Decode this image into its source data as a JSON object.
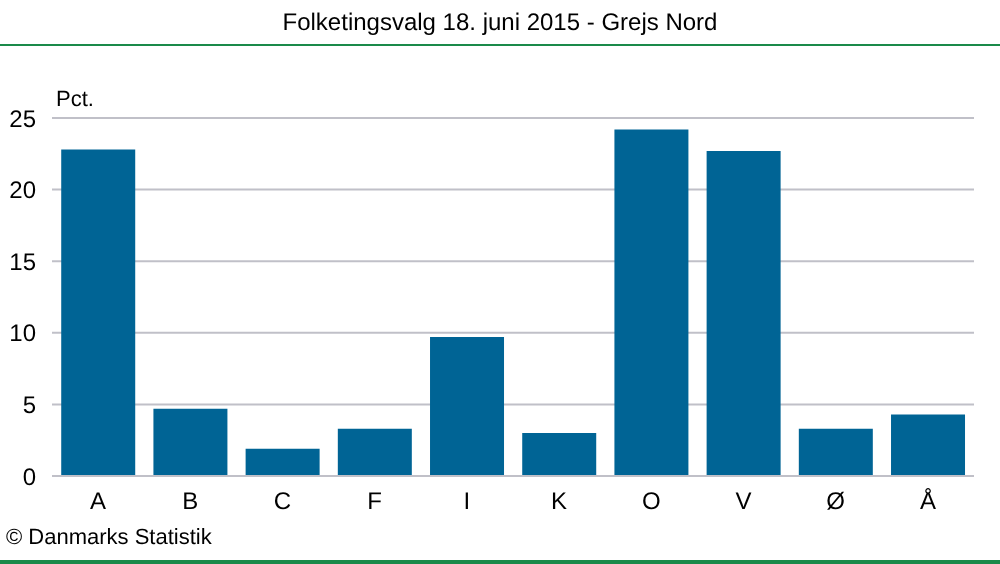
{
  "chart_data": {
    "type": "bar",
    "title": "Folketingsvalg 18. juni 2015 - Grejs Nord",
    "ylabel": "Pct.",
    "categories": [
      "A",
      "B",
      "C",
      "F",
      "I",
      "K",
      "O",
      "V",
      "Ø",
      "Å"
    ],
    "values": [
      22.8,
      4.7,
      1.9,
      3.3,
      9.7,
      3.0,
      24.2,
      22.7,
      3.3,
      4.3
    ],
    "color": "#006495",
    "ylim": [
      0,
      25
    ],
    "yticks": [
      0,
      5,
      10,
      15,
      20,
      25
    ],
    "grid": "y",
    "legend": false,
    "annotations": [
      "© Danmarks Statistik"
    ]
  }
}
